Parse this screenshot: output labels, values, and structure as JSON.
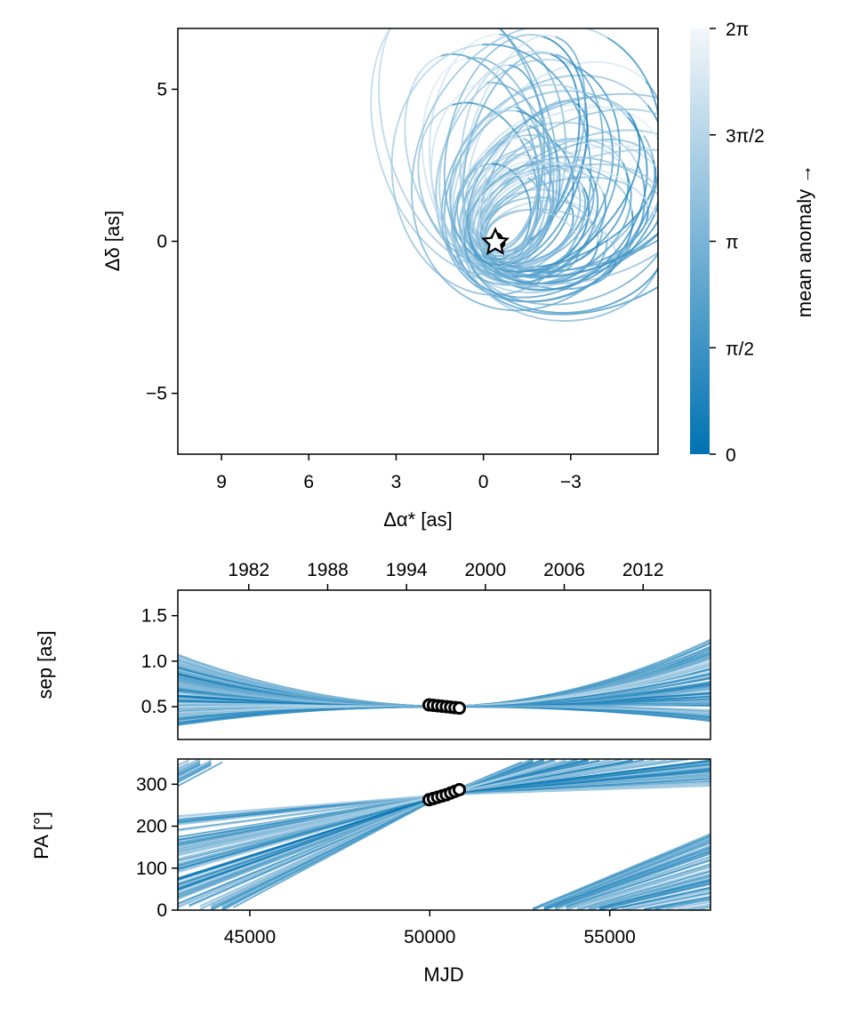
{
  "chart_data": [
    {
      "type": "line",
      "panel": "sky-plane orbits",
      "xlabel": "Δα* [as]",
      "ylabel": "Δδ [as]",
      "xlim": [
        10.5,
        -6
      ],
      "ylim": [
        -7,
        7
      ],
      "xticks": [
        9,
        6,
        3,
        0,
        -3
      ],
      "xtick_labels": [
        "9",
        "6",
        "3",
        "0",
        "−3"
      ],
      "yticks": [
        5,
        0,
        -5
      ],
      "ytick_labels": [
        "5",
        "0",
        "−5"
      ],
      "grid": false,
      "star_marker": {
        "x": 0,
        "y": 0
      },
      "observations": [
        {
          "x": -0.45,
          "y": 0.1
        },
        {
          "x": -0.5,
          "y": 0.03
        },
        {
          "x": -0.55,
          "y": -0.05
        }
      ],
      "colorbar": {
        "label": "mean anomaly →",
        "min": 0,
        "max": 6.2832,
        "ticks": [
          0,
          1.5708,
          3.1416,
          4.7124,
          6.2832
        ],
        "tick_labels": [
          "0",
          "π/2",
          "π",
          "3π/2",
          "2π"
        ],
        "color_low": "#0072b2",
        "color_high": "#f4f7fa"
      }
    },
    {
      "type": "line",
      "panel": "separation vs time",
      "ylabel": "sep [as]",
      "xlim": [
        43000,
        57800
      ],
      "ylim": [
        0.14,
        1.78
      ],
      "yticks": [
        0.5,
        1.0,
        1.5
      ],
      "ytick_labels": [
        "0.5",
        "1.0",
        "1.5"
      ],
      "top_axis_ticks": [
        "1982",
        "1988",
        "1994",
        "2000",
        "2006",
        "2012"
      ],
      "observations_mjd": [
        49980,
        50100,
        50220,
        50340,
        50460,
        50580,
        50700,
        50820
      ],
      "observations_sep": [
        0.52,
        0.515,
        0.51,
        0.505,
        0.5,
        0.495,
        0.49,
        0.485
      ]
    },
    {
      "type": "line",
      "panel": "position angle vs time",
      "xlabel": "MJD",
      "ylabel": "PA [°]",
      "xlim": [
        43000,
        57800
      ],
      "ylim": [
        0,
        360
      ],
      "xticks": [
        45000,
        50000,
        55000
      ],
      "xtick_labels": [
        "45000",
        "50000",
        "55000"
      ],
      "yticks": [
        0,
        100,
        200,
        300
      ],
      "ytick_labels": [
        "0",
        "100",
        "200",
        "300"
      ],
      "observations_mjd": [
        49980,
        50100,
        50220,
        50340,
        50460,
        50580,
        50700,
        50820
      ],
      "observations_pa": [
        263,
        266,
        269,
        272,
        275,
        279,
        283,
        287
      ]
    }
  ]
}
